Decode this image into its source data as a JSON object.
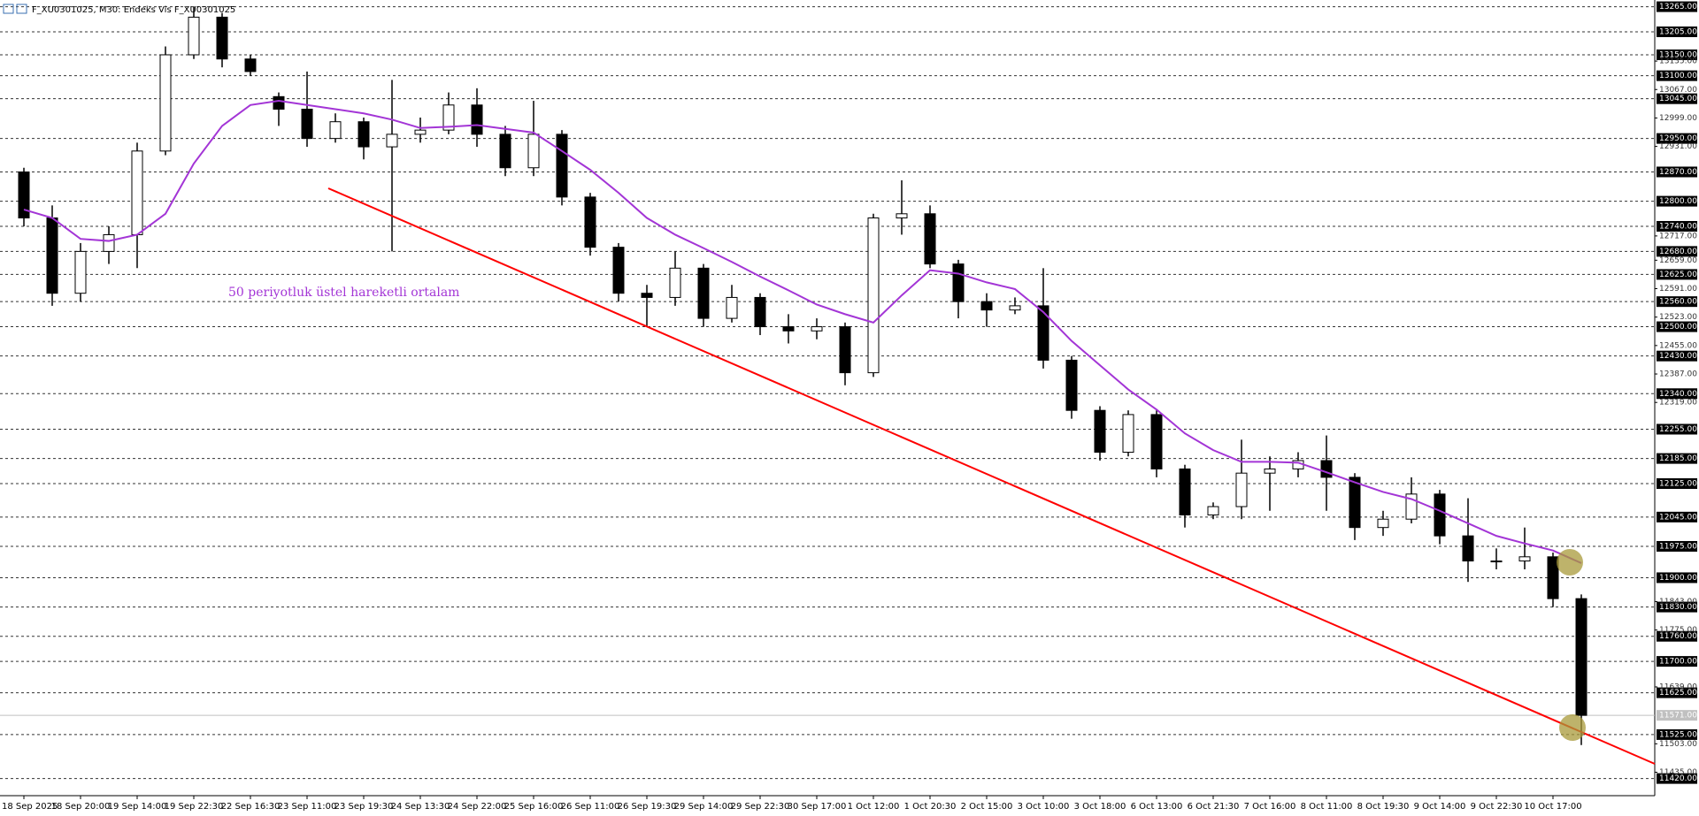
{
  "chart_data": {
    "type": "candlestick",
    "title": "F_XU0301025, M30:  Endeks Vis F_XU0301025",
    "annotation": "50 periyotluk üstel hareketli ortalam",
    "categories": [
      "18 Sep 2025",
      null,
      "18 Sep 20:00",
      null,
      "19 Sep 14:00",
      null,
      "19 Sep 22:30",
      null,
      "22 Sep 16:30",
      null,
      "23 Sep 11:00",
      null,
      "23 Sep 19:30",
      null,
      "24 Sep 13:30",
      null,
      "24 Sep 22:00",
      null,
      "25 Sep 16:00",
      null,
      "26 Sep 11:00",
      null,
      "26 Sep 19:30",
      null,
      "29 Sep 14:00",
      null,
      "29 Sep 22:30",
      null,
      "30 Sep 17:00",
      null,
      "1 Oct 12:00",
      null,
      "1 Oct 20:30",
      null,
      "2 Oct 15:00",
      null,
      "3 Oct 10:00",
      null,
      "3 Oct 18:00",
      null,
      "6 Oct 13:00",
      null,
      "6 Oct 21:30",
      null,
      "7 Oct 16:00",
      null,
      "8 Oct 11:00",
      null,
      "8 Oct 19:30",
      null,
      "9 Oct 14:00",
      null,
      "9 Oct 22:30",
      null,
      "10 Oct 17:00",
      null
    ],
    "open": [
      12870,
      12760,
      12580,
      12680,
      12720,
      12920,
      13150,
      13240,
      13140,
      13050,
      13020,
      12950,
      12990,
      12930,
      12960,
      12970,
      13030,
      12960,
      12880,
      12960,
      12810,
      12690,
      12580,
      12570,
      12640,
      12520,
      12570,
      12500,
      12490,
      12500,
      12390,
      12760,
      12770,
      12650,
      12560,
      12540,
      12550,
      12420,
      12300,
      12200,
      12290,
      12160,
      12050,
      12070,
      12150,
      12160,
      12180,
      12140,
      12020,
      12040,
      12100,
      12000,
      11940,
      11940,
      11950,
      11850
    ],
    "high": [
      12880,
      12790,
      12700,
      12740,
      12940,
      13170,
      13265,
      13250,
      13150,
      13060,
      13110,
      13010,
      13000,
      13090,
      13000,
      13060,
      13070,
      12980,
      13040,
      12970,
      12820,
      12700,
      12600,
      12680,
      12650,
      12600,
      12580,
      12530,
      12520,
      12510,
      12770,
      12850,
      12790,
      12660,
      12580,
      12570,
      12640,
      12430,
      12310,
      12300,
      12300,
      12170,
      12080,
      12230,
      12190,
      12200,
      12240,
      12150,
      12060,
      12140,
      12110,
      12090,
      11970,
      12020,
      11960,
      11860
    ],
    "low": [
      12740,
      12550,
      12560,
      12650,
      12640,
      12910,
      13140,
      13120,
      13100,
      12980,
      12930,
      12940,
      12900,
      12680,
      12940,
      12960,
      12930,
      12860,
      12860,
      12790,
      12670,
      12560,
      12500,
      12550,
      12500,
      12510,
      12480,
      12460,
      12470,
      12360,
      12380,
      12720,
      12640,
      12520,
      12500,
      12530,
      12400,
      12280,
      12180,
      12190,
      12140,
      12020,
      12040,
      12040,
      12060,
      12140,
      12060,
      11990,
      12000,
      12030,
      11980,
      11890,
      11920,
      11920,
      11830,
      11500
    ],
    "close": [
      12760,
      12580,
      12680,
      12720,
      12920,
      13150,
      13240,
      13140,
      13110,
      13020,
      12950,
      12990,
      12930,
      12960,
      12970,
      13030,
      12960,
      12880,
      12960,
      12810,
      12690,
      12580,
      12570,
      12640,
      12520,
      12570,
      12500,
      12490,
      12500,
      12390,
      12760,
      12770,
      12650,
      12560,
      12540,
      12550,
      12420,
      12300,
      12200,
      12290,
      12160,
      12050,
      12070,
      12150,
      12160,
      12180,
      12140,
      12020,
      12040,
      12100,
      12000,
      11940,
      11940,
      11950,
      11850,
      11571
    ],
    "candle_color": "#000000",
    "ema": {
      "color": "#a335d6",
      "values": [
        12780,
        12760,
        12710,
        12705,
        12720,
        12770,
        12890,
        12980,
        13030,
        13040,
        13030,
        13020,
        13010,
        12995,
        12975,
        12978,
        12982,
        12973,
        12964,
        12920,
        12875,
        12820,
        12760,
        12720,
        12688,
        12655,
        12620,
        12587,
        12553,
        12530,
        12510,
        12575,
        12635,
        12627,
        12606,
        12590,
        12535,
        12466,
        12408,
        12350,
        12302,
        12245,
        12205,
        12177,
        12177,
        12175,
        12152,
        12128,
        12105,
        12088,
        12060,
        12030,
        12000,
        11982,
        11965,
        11935
      ]
    },
    "ylim": [
      11379,
      13281
    ],
    "yticks": [
      {
        "value": 13265,
        "label": "13265.00"
      },
      {
        "value": 13205,
        "label": "13205.00"
      },
      {
        "value": 13150,
        "label": "13150.00"
      },
      {
        "value": 13100,
        "label": "13100.00"
      },
      {
        "value": 13045,
        "label": "13045.00"
      },
      {
        "value": 12950,
        "label": "12950.00"
      },
      {
        "value": 12870,
        "label": "12870.00"
      },
      {
        "value": 12800,
        "label": "12800.00"
      },
      {
        "value": 12740,
        "label": "12740.00"
      },
      {
        "value": 12680,
        "label": "12680.00"
      },
      {
        "value": 12625,
        "label": "12625.00"
      },
      {
        "value": 12560,
        "label": "12560.00"
      },
      {
        "value": 12500,
        "label": "12500.00"
      },
      {
        "value": 12430,
        "label": "12430.00"
      },
      {
        "value": 12340,
        "label": "12340.00"
      },
      {
        "value": 12255,
        "label": "12255.00"
      },
      {
        "value": 12185,
        "label": "12185.00"
      },
      {
        "value": 12125,
        "label": "12125.00"
      },
      {
        "value": 12045,
        "label": "12045.00"
      },
      {
        "value": 11975,
        "label": "11975.00"
      },
      {
        "value": 11900,
        "label": "11900.00"
      },
      {
        "value": 11830,
        "label": "11830.00"
      },
      {
        "value": 11760,
        "label": "11760.00"
      },
      {
        "value": 11700,
        "label": "11700.00"
      },
      {
        "value": 11625,
        "label": "11625.00"
      },
      {
        "value": 11525,
        "label": "11525.00"
      },
      {
        "value": 11420,
        "label": "11420.00"
      }
    ],
    "minor_yticks": [
      {
        "value": 13135,
        "label": "13135.00"
      },
      {
        "value": 13067,
        "label": "13067.00"
      },
      {
        "value": 12999,
        "label": "12999.00"
      },
      {
        "value": 12931,
        "label": "12931.00"
      },
      {
        "value": 12717,
        "label": "12717.00"
      },
      {
        "value": 12659,
        "label": "12659.00"
      },
      {
        "value": 12591,
        "label": "12591.00"
      },
      {
        "value": 12523,
        "label": "12523.00"
      },
      {
        "value": 12455,
        "label": "12455.00"
      },
      {
        "value": 12387,
        "label": "12387.00"
      },
      {
        "value": 12319,
        "label": "12319.00"
      },
      {
        "value": 11843,
        "label": "11843.00"
      },
      {
        "value": 11775,
        "label": "11775.00"
      },
      {
        "value": 11639,
        "label": "11639.00"
      },
      {
        "value": 11503,
        "label": "11503.00"
      },
      {
        "value": 11435,
        "label": "11435.00"
      }
    ],
    "current_price": {
      "value": 11571,
      "label": "11571.00"
    }
  }
}
